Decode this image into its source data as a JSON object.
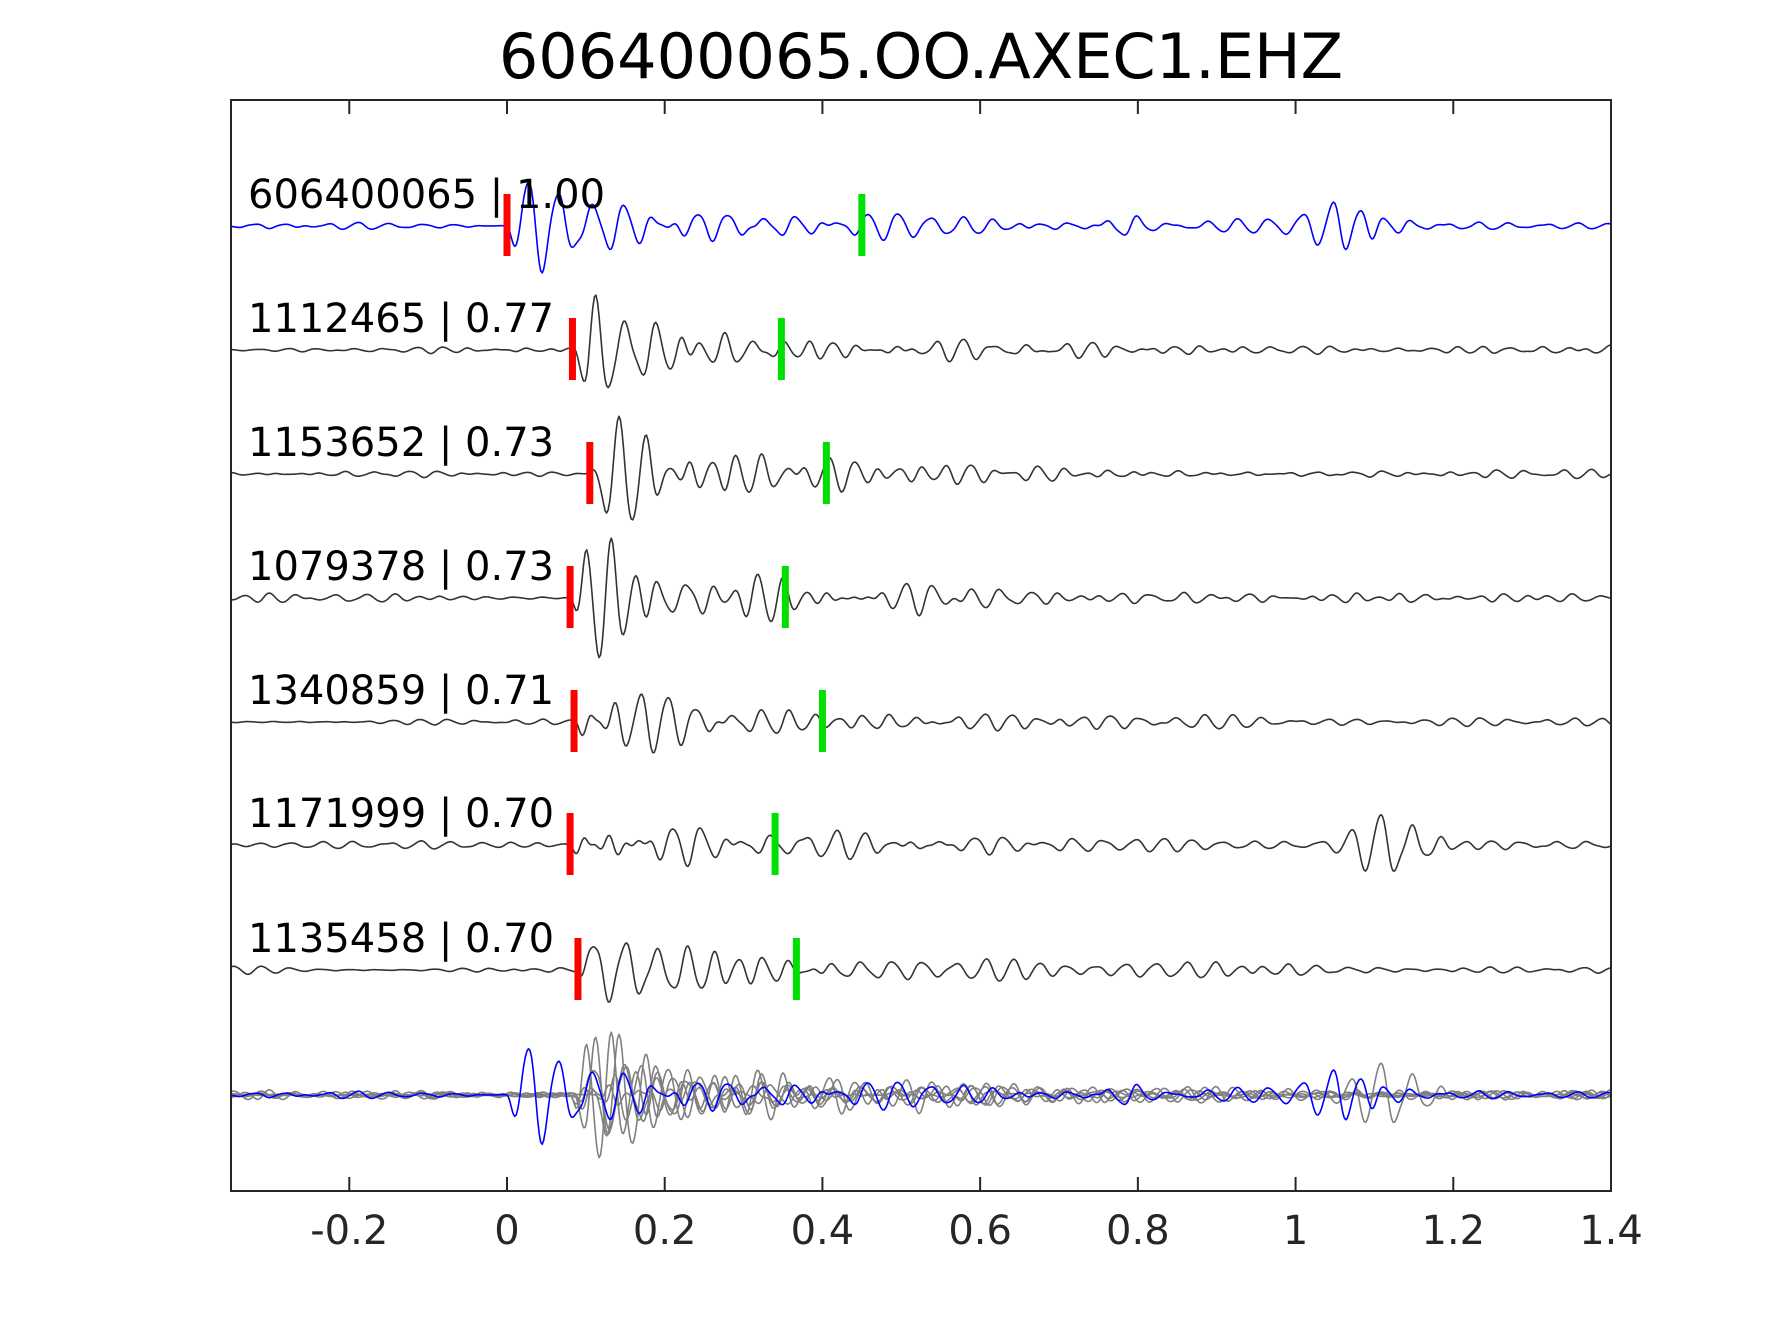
{
  "chart_data": {
    "type": "line",
    "title": "606400065.OO.AXEC1.EHZ",
    "xlabel": "",
    "ylabel": "",
    "xlim": [
      -0.35,
      1.4
    ],
    "xticks": [
      -0.2,
      0,
      0.2,
      0.4,
      0.6,
      0.8,
      1,
      1.2,
      1.4
    ],
    "xtick_labels": [
      "-0.2",
      "0",
      "0.2",
      "0.4",
      "0.6",
      "0.8",
      "1",
      "1.2",
      "1.4"
    ],
    "grid": false,
    "legend": "none",
    "colors": {
      "template": "#0000ff",
      "match": "#333333",
      "overlay": "#808080",
      "p_pick": "#ff0000",
      "s_pick": "#00e000",
      "axes": "#262626"
    },
    "traces": [
      {
        "name": "606400065 | 1.00",
        "p_pick": 0.0,
        "s_pick": 0.45,
        "color": "template",
        "seed": 11,
        "onset": 0.0,
        "amp": 1.0
      },
      {
        "name": "1112465 | 0.77",
        "p_pick": 0.083,
        "s_pick": 0.348,
        "color": "match",
        "seed": 23,
        "onset": 0.083,
        "amp": 1.0
      },
      {
        "name": "1153652 | 0.73",
        "p_pick": 0.105,
        "s_pick": 0.405,
        "color": "match",
        "seed": 37,
        "onset": 0.105,
        "amp": 1.0
      },
      {
        "name": "1079378 | 0.73",
        "p_pick": 0.08,
        "s_pick": 0.353,
        "color": "match",
        "seed": 41,
        "onset": 0.08,
        "amp": 1.0
      },
      {
        "name": "1340859 | 0.71",
        "p_pick": 0.085,
        "s_pick": 0.4,
        "color": "match",
        "seed": 53,
        "onset": 0.085,
        "amp": 1.0
      },
      {
        "name": "1171999 | 0.70",
        "p_pick": 0.08,
        "s_pick": 0.34,
        "color": "match",
        "seed": 67,
        "onset": 0.08,
        "amp": 1.0
      },
      {
        "name": "1135458 | 0.70",
        "p_pick": 0.09,
        "s_pick": 0.367,
        "color": "match",
        "seed": 79,
        "onset": 0.09,
        "amp": 1.0
      }
    ],
    "overlay": {
      "name": "",
      "template_color": "template",
      "match_color": "overlay"
    }
  }
}
